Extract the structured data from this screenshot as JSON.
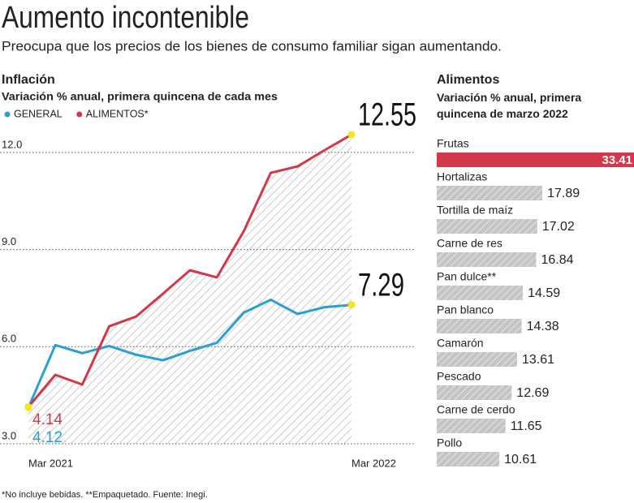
{
  "header": {
    "title": "Aumento incontenible",
    "subtitle": "Preocupa que los precios de los bienes de consumo familiar sigan aumentando."
  },
  "chart_data": [
    {
      "type": "line",
      "title": "Inflación",
      "subtitle": "Variación % anual, primera quincena de cada mes",
      "categories": [
        "Mar 2021",
        null,
        null,
        null,
        null,
        null,
        null,
        null,
        null,
        null,
        null,
        null,
        "Mar 2022"
      ],
      "series": [
        {
          "name": "GENERAL",
          "color": "#2a9fd6",
          "values": [
            4.12,
            6.05,
            5.8,
            6.02,
            5.75,
            5.58,
            5.87,
            6.12,
            7.05,
            7.45,
            7.01,
            7.22,
            7.29
          ]
        },
        {
          "name": "ALIMENTOS*",
          "color": "#d2384a",
          "values": [
            4.14,
            5.13,
            4.83,
            6.63,
            6.93,
            7.64,
            8.36,
            8.14,
            9.57,
            11.37,
            11.57,
            12.07,
            12.55
          ]
        }
      ],
      "ylim": [
        3,
        13
      ],
      "yticks": [
        {
          "value": 3,
          "label": "3.0"
        },
        {
          "value": 6,
          "label": "6.0"
        },
        {
          "value": 9,
          "label": "9.0"
        },
        {
          "value": 12,
          "label": "12.0"
        }
      ],
      "grid": true
    },
    {
      "type": "hbar",
      "title": "Alimentos",
      "subtitle": "Variación % anual, primera quincena de marzo 2022",
      "categories": [
        "Frutas",
        "Hortalizas",
        "Tortilla de maíz",
        "Carne de res",
        "Pan dulce**",
        "Pan blanco",
        "Camarón",
        "Pescado",
        "Carne de cerdo",
        "Pollo"
      ],
      "values": [
        33.41,
        17.89,
        17.02,
        16.84,
        14.59,
        14.38,
        13.61,
        12.69,
        11.65,
        10.61
      ],
      "colors": [
        "#d2384a",
        "#b0b0b0",
        "#b0b0b0",
        "#b0b0b0",
        "#b0b0b0",
        "#b0b0b0",
        "#b0b0b0",
        "#b0b0b0",
        "#b0b0b0",
        "#b0b0b0"
      ]
    }
  ],
  "footnote": "*No incluye bebidas. **Empaquetado. Fuente: Inegi."
}
